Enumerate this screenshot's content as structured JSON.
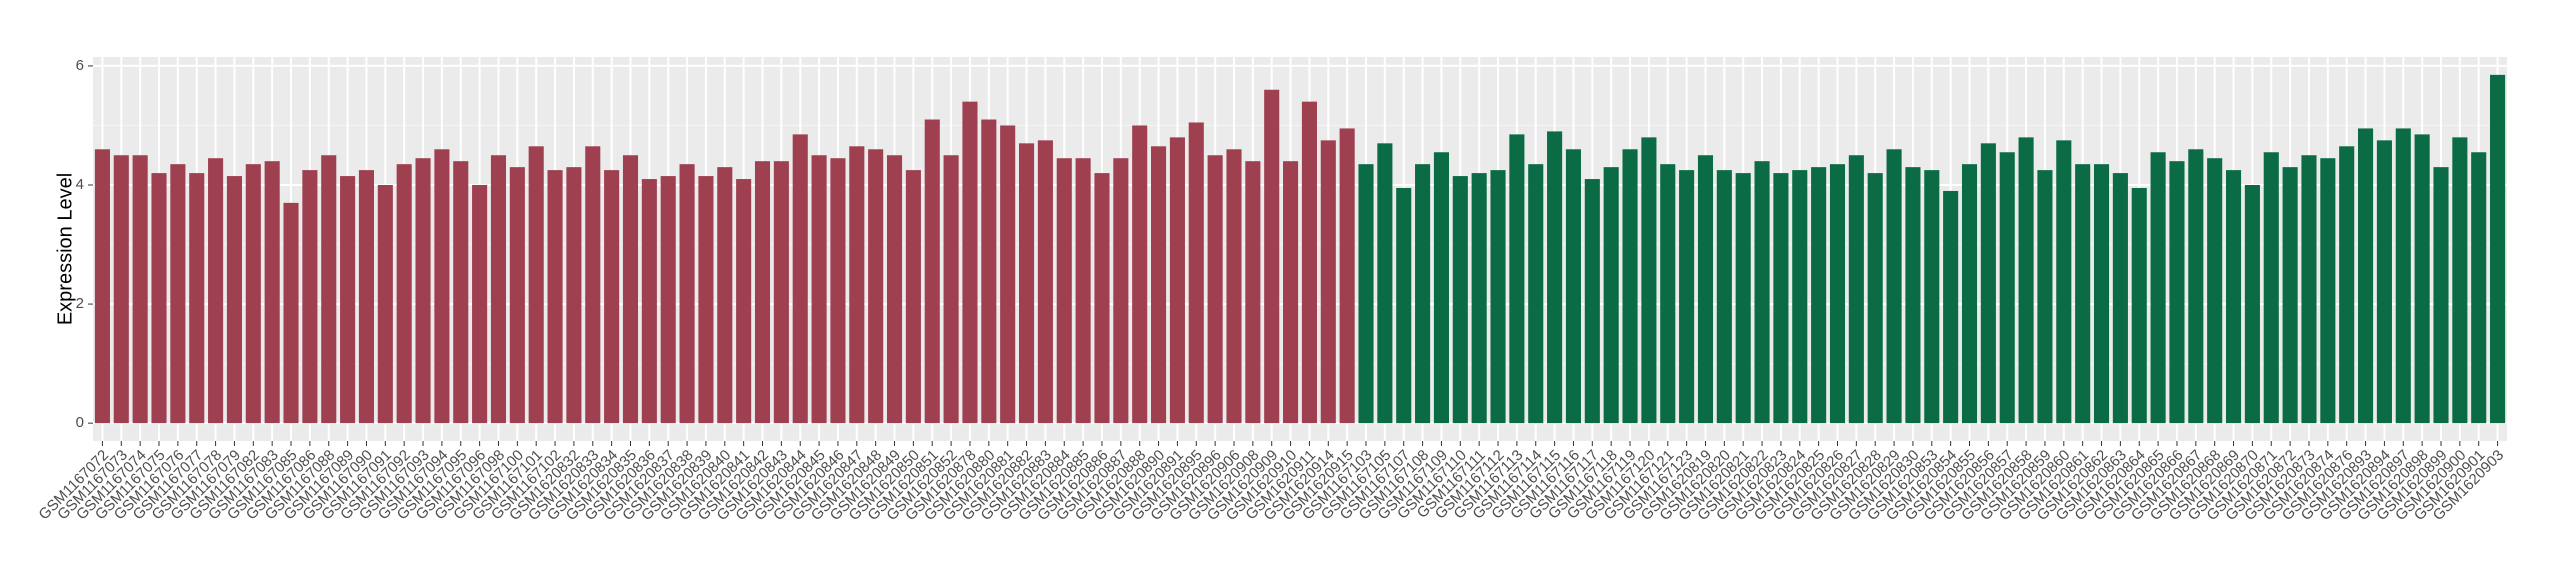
{
  "chart_data": {
    "type": "bar",
    "y_label": "Expression Level",
    "categories": [
      "GSM1167072",
      "GSM1167073",
      "GSM1167074",
      "GSM1167075",
      "GSM1167076",
      "GSM1167077",
      "GSM1167078",
      "GSM1167079",
      "GSM1167082",
      "GSM1167083",
      "GSM1167085",
      "GSM1167086",
      "GSM1167088",
      "GSM1167089",
      "GSM1167090",
      "GSM1167091",
      "GSM1167092",
      "GSM1167093",
      "GSM1167094",
      "GSM1167095",
      "GSM1167096",
      "GSM1167098",
      "GSM1167100",
      "GSM1167101",
      "GSM1167102",
      "GSM1620832",
      "GSM1620833",
      "GSM1620834",
      "GSM1620835",
      "GSM1620836",
      "GSM1620837",
      "GSM1620838",
      "GSM1620839",
      "GSM1620840",
      "GSM1620841",
      "GSM1620842",
      "GSM1620843",
      "GSM1620844",
      "GSM1620845",
      "GSM1620846",
      "GSM1620847",
      "GSM1620848",
      "GSM1620849",
      "GSM1620850",
      "GSM1620851",
      "GSM1620852",
      "GSM1620878",
      "GSM1620880",
      "GSM1620881",
      "GSM1620882",
      "GSM1620883",
      "GSM1620884",
      "GSM1620885",
      "GSM1620886",
      "GSM1620887",
      "GSM1620888",
      "GSM1620890",
      "GSM1620891",
      "GSM1620895",
      "GSM1620896",
      "GSM1620906",
      "GSM1620908",
      "GSM1620909",
      "GSM1620910",
      "GSM1620911",
      "GSM1620914",
      "GSM1620915",
      "GSM1167103",
      "GSM1167105",
      "GSM1167107",
      "GSM1167108",
      "GSM1167109",
      "GSM1167110",
      "GSM1167111",
      "GSM1167112",
      "GSM1167113",
      "GSM1167114",
      "GSM1167115",
      "GSM1167116",
      "GSM1167117",
      "GSM1167118",
      "GSM1167119",
      "GSM1167120",
      "GSM1167121",
      "GSM1167123",
      "GSM1620819",
      "GSM1620820",
      "GSM1620821",
      "GSM1620822",
      "GSM1620823",
      "GSM1620824",
      "GSM1620825",
      "GSM1620826",
      "GSM1620827",
      "GSM1620828",
      "GSM1620829",
      "GSM1620830",
      "GSM1620853",
      "GSM1620854",
      "GSM1620855",
      "GSM1620856",
      "GSM1620857",
      "GSM1620858",
      "GSM1620859",
      "GSM1620860",
      "GSM1620861",
      "GSM1620862",
      "GSM1620863",
      "GSM1620864",
      "GSM1620865",
      "GSM1620866",
      "GSM1620867",
      "GSM1620868",
      "GSM1620869",
      "GSM1620870",
      "GSM1620871",
      "GSM1620872",
      "GSM1620873",
      "GSM1620874",
      "GSM1620876",
      "GSM1620893",
      "GSM1620894",
      "GSM1620897",
      "GSM1620898",
      "GSM1620899",
      "GSM1620900",
      "GSM1620901",
      "GSM1620903"
    ],
    "values": [
      4.6,
      4.5,
      4.5,
      4.2,
      4.35,
      4.2,
      4.45,
      4.15,
      4.35,
      4.4,
      3.7,
      4.25,
      4.5,
      4.15,
      4.25,
      4.0,
      4.35,
      4.45,
      4.6,
      4.4,
      4.0,
      4.5,
      4.3,
      4.65,
      4.25,
      4.3,
      4.65,
      4.25,
      4.5,
      4.1,
      4.15,
      4.35,
      4.15,
      4.3,
      4.1,
      4.4,
      4.4,
      4.85,
      4.5,
      4.45,
      4.65,
      4.6,
      4.5,
      4.25,
      5.1,
      4.5,
      5.4,
      5.1,
      5.0,
      4.7,
      4.75,
      4.45,
      4.45,
      4.2,
      4.45,
      5.0,
      4.65,
      4.8,
      5.05,
      4.5,
      4.6,
      4.4,
      5.6,
      4.4,
      5.4,
      4.75,
      4.95,
      4.35,
      4.7,
      3.95,
      4.35,
      4.55,
      4.15,
      4.2,
      4.25,
      4.85,
      4.35,
      4.9,
      4.6,
      4.1,
      4.3,
      4.6,
      4.8,
      4.35,
      4.25,
      4.5,
      4.25,
      4.2,
      4.4,
      4.2,
      4.25,
      4.3,
      4.35,
      4.5,
      4.2,
      4.6,
      4.3,
      4.25,
      3.9,
      4.35,
      4.7,
      4.55,
      4.8,
      4.25,
      4.75,
      4.35,
      4.35,
      4.2,
      3.95,
      4.55,
      4.4,
      4.6,
      4.45,
      4.25,
      4.0,
      4.55,
      4.3,
      4.5,
      4.45,
      4.65,
      4.95,
      4.75,
      4.95,
      4.85,
      4.3,
      4.8,
      4.55,
      5.85
    ],
    "colors": [
      "#9e4050",
      "#9e4050",
      "#9e4050",
      "#9e4050",
      "#9e4050",
      "#9e4050",
      "#9e4050",
      "#9e4050",
      "#9e4050",
      "#9e4050",
      "#9e4050",
      "#9e4050",
      "#9e4050",
      "#9e4050",
      "#9e4050",
      "#9e4050",
      "#9e4050",
      "#9e4050",
      "#9e4050",
      "#9e4050",
      "#9e4050",
      "#9e4050",
      "#9e4050",
      "#9e4050",
      "#9e4050",
      "#9e4050",
      "#9e4050",
      "#9e4050",
      "#9e4050",
      "#9e4050",
      "#9e4050",
      "#9e4050",
      "#9e4050",
      "#9e4050",
      "#9e4050",
      "#9e4050",
      "#9e4050",
      "#9e4050",
      "#9e4050",
      "#9e4050",
      "#9e4050",
      "#9e4050",
      "#9e4050",
      "#9e4050",
      "#9e4050",
      "#9e4050",
      "#9e4050",
      "#9e4050",
      "#9e4050",
      "#9e4050",
      "#9e4050",
      "#9e4050",
      "#9e4050",
      "#9e4050",
      "#9e4050",
      "#9e4050",
      "#9e4050",
      "#9e4050",
      "#9e4050",
      "#9e4050",
      "#9e4050",
      "#9e4050",
      "#9e4050",
      "#9e4050",
      "#9e4050",
      "#9e4050",
      "#9e4050",
      "#0a6b45",
      "#0a6b45",
      "#0a6b45",
      "#0a6b45",
      "#0a6b45",
      "#0a6b45",
      "#0a6b45",
      "#0a6b45",
      "#0a6b45",
      "#0a6b45",
      "#0a6b45",
      "#0a6b45",
      "#0a6b45",
      "#0a6b45",
      "#0a6b45",
      "#0a6b45",
      "#0a6b45",
      "#0a6b45",
      "#0a6b45",
      "#0a6b45",
      "#0a6b45",
      "#0a6b45",
      "#0a6b45",
      "#0a6b45",
      "#0a6b45",
      "#0a6b45",
      "#0a6b45",
      "#0a6b45",
      "#0a6b45",
      "#0a6b45",
      "#0a6b45",
      "#0a6b45",
      "#0a6b45",
      "#0a6b45",
      "#0a6b45",
      "#0a6b45",
      "#0a6b45",
      "#0a6b45",
      "#0a6b45",
      "#0a6b45",
      "#0a6b45",
      "#0a6b45",
      "#0a6b45",
      "#0a6b45",
      "#0a6b45",
      "#0a6b45",
      "#0a6b45",
      "#0a6b45",
      "#0a6b45",
      "#0a6b45",
      "#0a6b45",
      "#0a6b45",
      "#0a6b45",
      "#0a6b45",
      "#0a6b45",
      "#0a6b45",
      "#0a6b45",
      "#0a6b45",
      "#0a6b45",
      "#0a6b45",
      "#0a6b45"
    ],
    "ylim": [
      -0.3,
      6.15
    ],
    "yticks": [
      0,
      2,
      4,
      6
    ],
    "grid": true,
    "minor_grid": true
  }
}
